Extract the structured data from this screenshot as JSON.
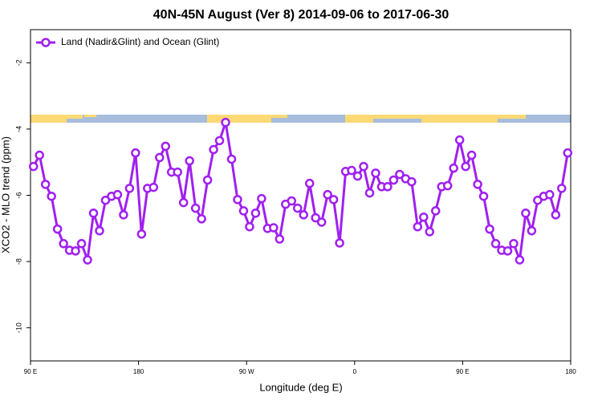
{
  "chart_data": {
    "type": "line",
    "title": "40N-45N August (Ver 8)   2014-09-06 to 2017-06-30",
    "x_label": "Longitude (deg E)",
    "y_label": "XCO2 - MLO trend (ppm)",
    "xlim": [
      90,
      540
    ],
    "ylim": [
      -11,
      -1
    ],
    "xticks": [
      {
        "value": 90,
        "label": "90 E"
      },
      180,
      {
        "value": 270,
        "label": "90 W"
      },
      {
        "value": 360,
        "label": "0"
      },
      {
        "value": 450,
        "label": "90 E"
      },
      {
        "value": 540,
        "label": "180"
      }
    ],
    "yticks": [
      -2,
      -4,
      -6,
      -8,
      -10
    ],
    "legend": "top-left",
    "x": [
      92.5,
      97.5,
      102.5,
      107.5,
      112.5,
      117.5,
      122.5,
      127.5,
      132.5,
      137.5,
      142.5,
      147.5,
      152.5,
      157.5,
      162.5,
      167.5,
      172.5,
      177.5,
      182.5,
      187.5,
      192.5,
      197.5,
      202.5,
      207.5,
      212.5,
      217.5,
      222.5,
      227.5,
      232.5,
      237.5,
      242.5,
      247.5,
      252.5,
      257.5,
      262.5,
      267.5,
      272.5,
      277.5,
      282.5,
      287.5,
      292.5,
      297.5,
      302.5,
      307.5,
      312.5,
      317.5,
      322.5,
      327.5,
      332.5,
      337.5,
      342.5,
      347.5,
      352.5,
      357.5,
      362.5,
      367.5,
      372.5,
      377.5,
      382.5,
      387.5,
      392.5,
      397.5,
      402.5,
      407.5,
      412.5,
      417.5,
      422.5,
      427.5,
      432.5,
      437.5,
      442.5,
      447.5,
      452.5,
      457.5,
      462.5,
      467.5,
      472.5,
      477.5,
      482.5,
      487.5,
      492.5,
      497.5,
      502.5,
      507.5,
      512.5,
      517.5,
      522.5,
      527.5,
      532.5,
      537.5
    ],
    "series": [
      {
        "name": "Land (Nadir&Glint) and Ocean (Glint)",
        "color": "#a020f0",
        "values": [
          -5.13,
          -4.79,
          -5.67,
          -6.03,
          -7.02,
          -7.46,
          -7.66,
          -7.68,
          -7.46,
          -7.95,
          -6.54,
          -7.07,
          -6.15,
          -6.03,
          -5.98,
          -6.59,
          -5.79,
          -4.72,
          -7.17,
          -5.79,
          -5.76,
          -4.86,
          -4.52,
          -5.3,
          -5.3,
          -6.22,
          -4.96,
          -6.39,
          -6.71,
          -5.54,
          -4.62,
          -4.35,
          -3.8,
          -4.91,
          -6.13,
          -6.47,
          -6.95,
          -6.54,
          -6.1,
          -7.0,
          -6.98,
          -7.32,
          -6.27,
          -6.17,
          -6.39,
          -6.59,
          -5.64,
          -6.68,
          -6.81,
          -5.98,
          -6.13,
          -7.44,
          -5.28,
          -5.25,
          -5.42,
          -5.13,
          -5.93,
          -5.33,
          -5.74,
          -5.74,
          -5.54,
          -5.37,
          -5.5,
          -5.59,
          -6.95,
          -6.66,
          -7.1,
          -6.47,
          -5.74,
          -5.71,
          -5.18,
          -4.33,
          -5.13,
          -4.79,
          -5.67,
          -6.03,
          -7.02,
          -7.46,
          -7.66,
          -7.68,
          -7.46,
          -7.95,
          -6.54,
          -7.07,
          -6.15,
          -6.03,
          -5.98,
          -6.59,
          -5.79,
          -4.72
        ]
      }
    ]
  }
}
